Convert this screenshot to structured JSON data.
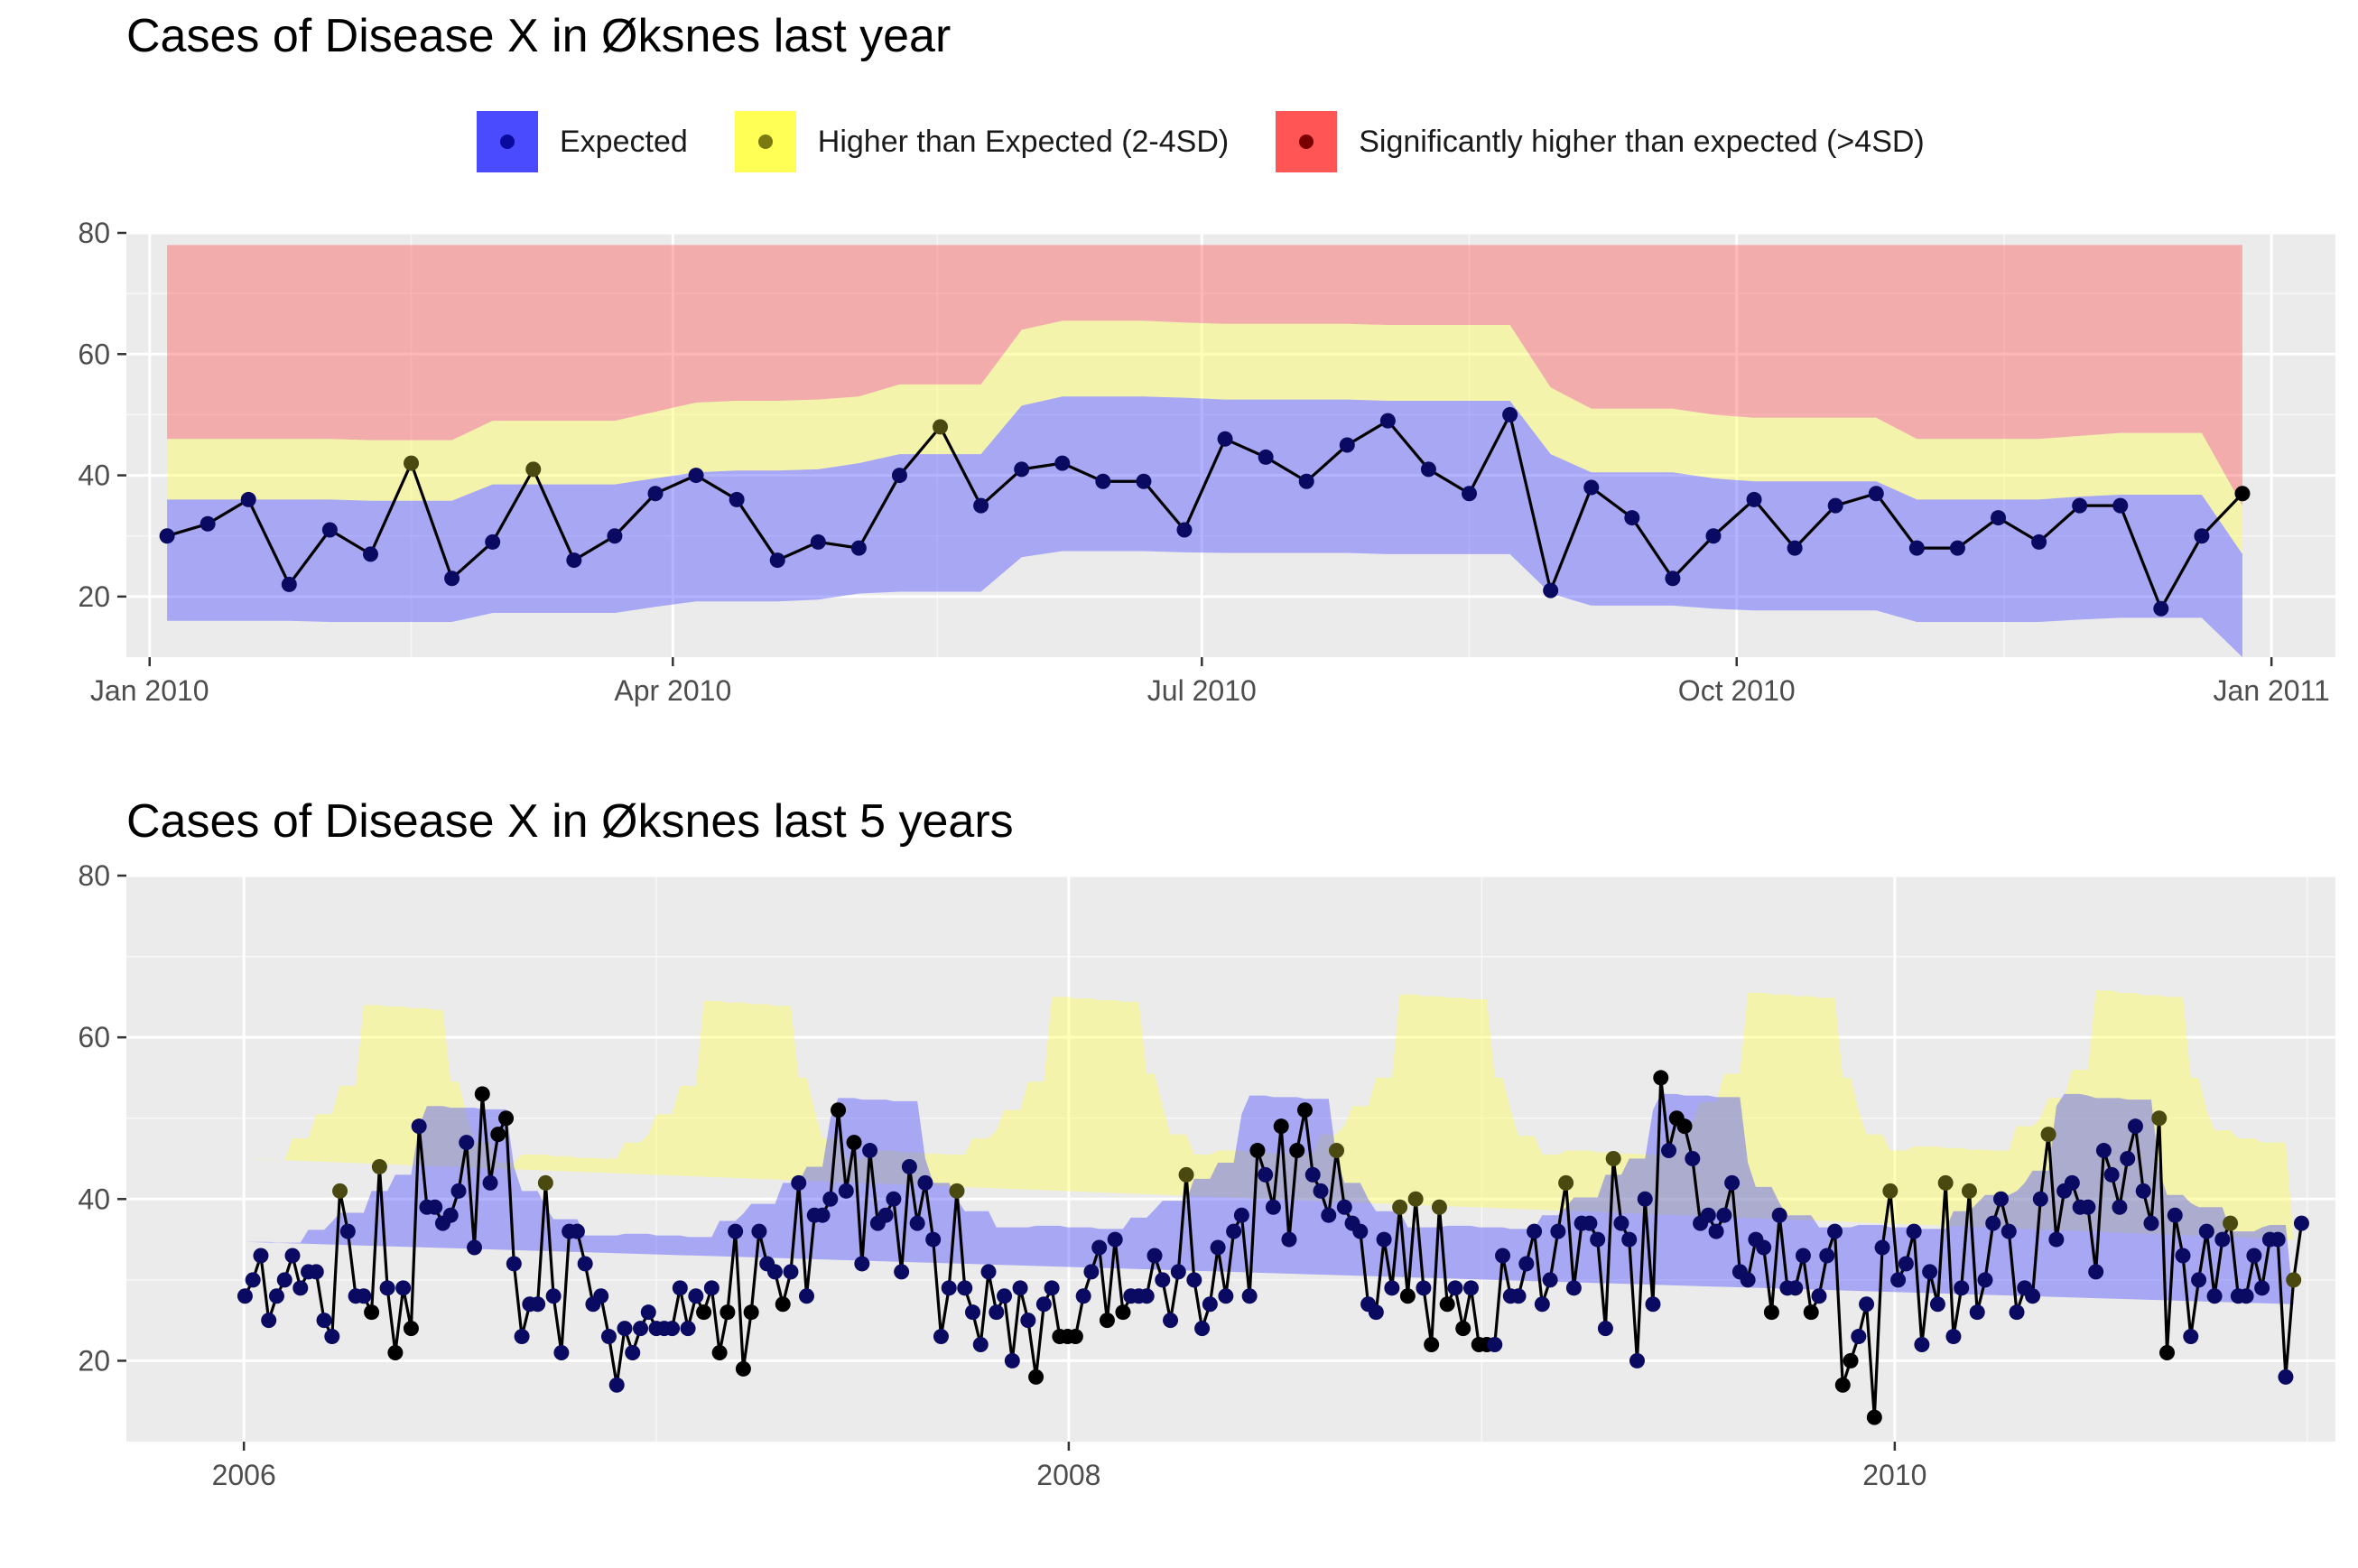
{
  "chart_data": [
    {
      "type": "area+line",
      "title": "Cases of Disease X in Øksnes last year",
      "xlabel": "",
      "ylabel": "",
      "x_ticks": [
        "Jan 2010",
        "Apr 2010",
        "Jul 2010",
        "Oct 2010",
        "Jan 2011"
      ],
      "y_ticks": [
        20,
        40,
        60,
        80
      ],
      "xlim": [
        "2009-12-28",
        "2011-01-12"
      ],
      "ylim": [
        10,
        80
      ],
      "grid": true,
      "legend_position": "top",
      "legend": [
        {
          "label": "Expected",
          "band_color": "#4a4aff",
          "point_color": "#0a0a9e"
        },
        {
          "label": "Higher than Expected (2-4SD)",
          "band_color": "#ffff55",
          "point_color": "#7a7a10"
        },
        {
          "label": "Significantly higher than expected (>4SD)",
          "band_color": "#ff5555",
          "point_color": "#7a0000"
        }
      ],
      "band_top": 78,
      "weeks_start": "2010-01-04",
      "week_step_days": 7,
      "cases": [
        30,
        32,
        36,
        22,
        31,
        27,
        42,
        23,
        29,
        41,
        26,
        30,
        37,
        40,
        36,
        26,
        29,
        28,
        40,
        48,
        35,
        41,
        42,
        39,
        39,
        31,
        46,
        43,
        39,
        45,
        49,
        41,
        37,
        50,
        21,
        38,
        33,
        23,
        30,
        36,
        28,
        35,
        37,
        28,
        28,
        33,
        29,
        35,
        35,
        18,
        30,
        37
      ],
      "upper_2sd": [
        36,
        36,
        36,
        36,
        36,
        35.8,
        35.8,
        35.8,
        38.5,
        38.5,
        38.5,
        38.5,
        39.5,
        40.5,
        40.8,
        40.8,
        41,
        42,
        43.5,
        43.5,
        43.5,
        51.5,
        53,
        53,
        53,
        52.8,
        52.5,
        52.5,
        52.5,
        52.5,
        52.3,
        52.3,
        52.3,
        52.3,
        43.5,
        40.5,
        40.5,
        40.5,
        39.5,
        39,
        39,
        39,
        39,
        36,
        36,
        36,
        36,
        36.5,
        36.8,
        36.8,
        36.8,
        27
      ],
      "upper_4sd": [
        46,
        46,
        46,
        46,
        46,
        45.8,
        45.8,
        45.8,
        49,
        49,
        49,
        49,
        50.5,
        52,
        52.3,
        52.3,
        52.5,
        53,
        55,
        55,
        55,
        64,
        65.5,
        65.5,
        65.5,
        65.2,
        65,
        65,
        65,
        65,
        64.8,
        64.8,
        64.8,
        64.8,
        54.5,
        51,
        51,
        51,
        50,
        49.5,
        49.5,
        49.5,
        49.5,
        46,
        46,
        46,
        46,
        46.5,
        47,
        47,
        47,
        35
      ],
      "lower": [
        16,
        16,
        16,
        16,
        15.8,
        15.8,
        15.8,
        15.8,
        17.3,
        17.3,
        17.3,
        17.3,
        18.3,
        19.2,
        19.2,
        19.2,
        19.5,
        20.5,
        20.8,
        20.8,
        20.8,
        26.5,
        27.5,
        27.5,
        27.5,
        27.3,
        27.2,
        27.2,
        27.2,
        27.2,
        27,
        27,
        27,
        27,
        20.5,
        18.5,
        18.5,
        18.5,
        18,
        17.7,
        17.7,
        17.7,
        17.7,
        15.8,
        15.8,
        15.8,
        15.8,
        16.2,
        16.5,
        16.5,
        16.5,
        10
      ]
    },
    {
      "type": "area+line",
      "title": "Cases of Disease X in Øksnes last 5 years",
      "xlabel": "",
      "ylabel": "",
      "x_ticks": [
        "2006",
        "2008",
        "2010"
      ],
      "y_ticks": [
        20,
        40,
        60,
        80
      ],
      "xlim": [
        "2005-09-19",
        "2011-01-26"
      ],
      "ylim": [
        10,
        80
      ],
      "grid": true,
      "band_top": 78,
      "weeks_start": "2006-01-02",
      "week_step_days": 7,
      "cases": [
        28,
        30,
        33,
        25,
        28,
        30,
        33,
        29,
        31,
        31,
        25,
        23,
        41,
        36,
        28,
        28,
        26,
        44,
        29,
        21,
        29,
        24,
        49,
        39,
        39,
        37,
        38,
        41,
        47,
        34,
        53,
        42,
        48,
        50,
        32,
        23,
        27,
        27,
        42,
        28,
        21,
        36,
        36,
        32,
        27,
        28,
        23,
        17,
        24,
        21,
        24,
        26,
        24,
        24,
        24,
        29,
        24,
        28,
        26,
        29,
        21,
        26,
        36,
        19,
        26,
        36,
        32,
        31,
        27,
        31,
        42,
        28,
        38,
        38,
        40,
        51,
        41,
        47,
        32,
        46,
        37,
        38,
        40,
        31,
        44,
        37,
        42,
        35,
        23,
        29,
        41,
        29,
        26,
        22,
        31,
        26,
        28,
        20,
        29,
        25,
        18,
        27,
        29,
        23,
        23,
        23,
        28,
        31,
        34,
        25,
        35,
        26,
        28,
        28,
        28,
        33,
        30,
        25,
        31,
        43,
        30,
        24,
        27,
        34,
        28,
        36,
        38,
        28,
        46,
        43,
        39,
        49,
        35,
        46,
        51,
        43,
        41,
        38,
        46,
        39,
        37,
        36,
        27,
        26,
        35,
        29,
        39,
        28,
        40,
        29,
        22,
        39,
        27,
        29,
        24,
        29,
        22,
        22,
        22,
        33,
        28,
        28,
        32,
        36,
        27,
        30,
        36,
        42,
        29,
        37,
        37,
        35,
        24,
        45,
        37,
        35,
        20,
        40,
        27,
        55,
        46,
        50,
        49,
        45,
        37,
        38,
        36,
        38,
        42,
        31,
        30,
        35,
        34,
        26,
        38,
        29,
        29,
        33,
        26,
        28,
        33,
        36,
        17,
        20,
        23,
        27,
        13,
        34,
        41,
        30,
        32,
        36,
        22,
        31,
        27,
        42,
        23,
        29,
        41,
        26,
        30,
        37,
        40,
        36,
        26,
        29,
        28,
        40,
        48,
        35,
        41,
        42,
        39,
        39,
        31,
        46,
        43,
        39,
        45,
        49,
        41,
        37,
        50,
        21,
        38,
        33,
        23,
        30,
        36,
        28,
        35,
        37,
        28,
        28,
        33,
        29,
        35,
        35,
        18,
        30,
        37
      ],
      "upper_2sd": [
        34.7,
        34.7,
        34.7,
        34.7,
        34.6,
        34.6,
        34.6,
        34.6,
        36.2,
        36.2,
        36.2,
        37.2,
        38.3,
        38.3,
        38.3,
        38.3,
        41,
        41,
        41,
        43,
        43,
        43,
        49,
        51.5,
        51.5,
        51.5,
        51.3,
        51.3,
        51.3,
        51.3,
        51.1,
        51.1,
        51.1,
        51.1,
        44,
        41,
        41,
        41,
        39,
        37.5,
        37.5,
        37.5,
        37.5,
        35.5,
        35.5,
        35.5,
        35.5,
        35.5,
        35.7,
        35.7,
        35.7,
        35.7,
        35.5,
        35.5,
        35.5,
        35.5,
        35.3,
        35.3,
        35.3,
        35.3,
        37.3,
        37.3,
        37.3,
        38.2,
        39.4,
        39.4,
        39.4,
        39.4,
        42,
        42,
        42,
        44,
        44,
        44,
        50,
        52.5,
        52.5,
        52.5,
        52.3,
        52.3,
        52.3,
        52.3,
        52.1,
        52.1,
        52.1,
        52.1,
        45,
        42,
        42,
        42,
        40,
        38.5,
        38.5,
        38.5,
        38.5,
        36.5,
        36.5,
        36.5,
        36.5,
        36.5,
        36.7,
        36.7,
        36.7,
        36.7,
        36.5,
        36.5,
        36.5,
        36.5,
        36.3,
        36.3,
        36.3,
        36.3,
        37.7,
        37.7,
        37.7,
        38.7,
        39.8,
        39.8,
        39.8,
        39.8,
        42.5,
        42.5,
        42.5,
        44.5,
        44.5,
        44.5,
        50.5,
        52.8,
        52.8,
        52.8,
        52.6,
        52.6,
        52.6,
        52.6,
        52.4,
        52.4,
        52.4,
        52.4,
        45,
        42,
        42,
        42,
        40,
        38.5,
        38.5,
        38.5,
        38.5,
        36.5,
        36.5,
        36.5,
        36.5,
        36.5,
        36.7,
        36.7,
        36.7,
        36.7,
        36.5,
        36.5,
        36.5,
        36.5,
        36.3,
        36.3,
        36.3,
        36.3,
        38,
        38,
        38,
        39,
        40.2,
        40.2,
        40.2,
        40.2,
        43,
        43,
        43,
        45,
        45,
        45,
        51,
        53,
        53,
        53,
        52.8,
        52.8,
        52.8,
        52.8,
        52.6,
        52.6,
        52.6,
        52.6,
        44.5,
        41.5,
        41.5,
        41.5,
        39.5,
        38,
        38,
        38,
        38,
        36.5,
        36.5,
        36.5,
        36.5,
        36.5,
        36.8,
        36.8,
        36.8,
        36.8,
        36.5,
        36.5,
        36.5,
        36.5,
        36.3,
        36.3,
        36.3,
        36.3,
        38.5,
        38.5,
        38.5,
        39.5,
        40.5,
        40.5,
        40.5,
        40.5,
        41,
        42,
        43.5,
        43.5,
        43.5,
        51.5,
        53,
        53,
        53,
        52.8,
        52.5,
        52.5,
        52.5,
        52.5,
        52.3,
        52.3,
        52.3,
        52.3,
        43.5,
        40.5,
        40.5,
        40.5,
        39.5,
        39,
        39,
        39,
        39,
        36,
        36,
        36,
        36,
        36.5,
        36.8,
        36.8,
        36.8,
        27
      ],
      "upper_4sd": [
        45,
        45,
        45,
        44.8,
        44.8,
        44.8,
        47.5,
        47.5,
        47.5,
        50.5,
        50.5,
        50.5,
        54,
        54,
        54,
        64,
        64,
        64,
        63.8,
        63.8,
        63.8,
        63.6,
        63.6,
        63.6,
        63.4,
        63.4,
        54.5,
        54.5,
        50.5,
        47,
        47,
        47,
        44.5,
        44.5,
        44.5,
        45.5,
        45.5,
        45.5,
        45.5,
        45.3,
        45.3,
        45.3,
        45.1,
        45.1,
        45.1,
        45,
        45,
        45,
        47,
        47,
        47,
        48,
        50.5,
        50.5,
        50.5,
        54,
        54,
        54,
        64.5,
        64.5,
        64.5,
        64.3,
        64.3,
        64.3,
        64.1,
        64.1,
        64.1,
        63.9,
        63.9,
        63.9,
        55,
        55,
        51,
        47.5,
        47.5,
        47.5,
        45,
        45,
        45,
        46,
        46,
        46,
        46,
        45.8,
        45.8,
        45.8,
        45.6,
        45.6,
        45.6,
        45.5,
        45.5,
        45.5,
        47.5,
        47.5,
        47.5,
        48.5,
        51,
        51,
        51,
        54.5,
        54.5,
        54.5,
        65,
        65,
        65,
        64.8,
        64.8,
        64.8,
        64.6,
        64.6,
        64.6,
        64.4,
        64.4,
        64.4,
        55.5,
        55.5,
        51.5,
        48,
        48,
        48,
        45.5,
        45.5,
        45.5,
        46,
        46,
        46,
        46,
        45.8,
        45.8,
        45.8,
        45.6,
        45.6,
        45.6,
        45.5,
        45.5,
        45.5,
        48,
        48,
        48,
        49,
        51.5,
        51.5,
        51.5,
        55,
        55,
        55,
        65.3,
        65.3,
        65.3,
        65.1,
        65.1,
        65.1,
        64.9,
        64.9,
        64.9,
        64.7,
        64.7,
        64.7,
        55,
        55,
        51,
        47.8,
        47.8,
        47.8,
        45.5,
        45.5,
        45.5,
        46,
        46,
        46,
        46,
        45.8,
        45.8,
        45.8,
        45.6,
        45.6,
        45.6,
        45.5,
        45.5,
        45.5,
        48.5,
        48.5,
        48.5,
        49.5,
        52,
        52,
        52,
        55.5,
        55.5,
        55.5,
        65.5,
        65.5,
        65.5,
        65.3,
        65.3,
        65.3,
        65.1,
        65.1,
        65.1,
        64.9,
        64.9,
        64.9,
        55,
        55,
        51,
        48,
        48,
        48,
        46,
        46,
        46,
        46.5,
        46.5,
        46.5,
        46.5,
        46.3,
        46.3,
        46.3,
        46.1,
        46.1,
        46.1,
        46,
        46,
        46,
        49,
        49,
        49,
        50,
        52.5,
        52.5,
        52.5,
        56,
        56,
        56,
        65.8,
        65.8,
        65.8,
        65.5,
        65.5,
        65.5,
        65.2,
        65.2,
        65.2,
        65,
        65,
        65,
        55,
        55,
        51,
        48.5,
        48.5,
        48.5,
        47.5,
        47.5,
        47.5,
        47,
        47,
        47,
        47,
        35
      ],
      "lower": [
        15,
        15,
        15,
        14.8,
        14.8,
        14.8,
        16.7,
        16.7,
        16.7,
        18.2,
        18.2,
        18.2,
        20.5,
        20.5,
        20.5,
        27.5,
        27.5,
        27.5,
        27.3,
        27.3,
        27.3,
        27.1,
        27.1,
        27.1,
        26.9,
        26.9,
        21,
        21,
        17.5,
        16.5,
        16.5,
        16.5,
        15,
        15,
        15,
        16,
        16,
        16,
        16,
        15.8,
        15.8,
        15.8,
        15.6,
        15.6,
        15.6,
        15.3,
        15.3,
        15.3,
        16.8,
        16.8,
        16.8,
        17.5,
        18.5,
        18.5,
        18.5,
        20.5,
        20.5,
        20.5,
        27.7,
        27.7,
        27.7,
        27.5,
        27.5,
        27.5,
        27.3,
        27.3,
        27.3,
        27.1,
        27.1,
        27.1,
        21.5,
        21.5,
        18,
        16.8,
        16.8,
        16.8,
        15.3,
        15.3,
        15.3,
        16.5,
        16.5,
        16.5,
        16.5,
        16.3,
        16.3,
        16.3,
        16.1,
        16.1,
        16.1,
        15.8,
        15.8,
        15.8,
        17,
        17,
        17,
        17.7,
        18.7,
        18.7,
        18.7,
        20.8,
        20.8,
        20.8,
        28,
        28,
        28,
        27.8,
        27.8,
        27.8,
        27.6,
        27.6,
        27.6,
        27.4,
        27.4,
        27.4,
        21.8,
        21.8,
        18.2,
        17,
        17,
        17,
        15.5,
        15.5,
        15.5,
        16.5,
        16.5,
        16.5,
        16.5,
        16.3,
        16.3,
        16.3,
        16.1,
        16.1,
        16.1,
        15.8,
        15.8,
        15.8,
        17.2,
        17.2,
        17.2,
        18,
        19,
        19,
        19,
        21,
        21,
        21,
        28.2,
        28.2,
        28.2,
        28,
        28,
        28,
        27.8,
        27.8,
        27.8,
        27.6,
        27.6,
        27.6,
        21.5,
        21.5,
        18,
        16.9,
        16.9,
        16.9,
        15.5,
        15.5,
        15.5,
        16.3,
        16.3,
        16.3,
        16.3,
        16.1,
        16.1,
        16.1,
        15.9,
        15.9,
        15.9,
        15.7,
        15.7,
        15.7,
        17.5,
        17.5,
        17.5,
        18.3,
        19.3,
        19.3,
        19.3,
        21.3,
        21.3,
        21.3,
        28.4,
        28.4,
        28.4,
        28.2,
        28.2,
        28.2,
        28,
        28,
        28,
        27.8,
        27.8,
        27.8,
        21.5,
        21.5,
        18,
        17,
        17,
        17,
        15.8,
        15.8,
        15.8,
        16.3,
        16.3,
        16.3,
        16.3,
        16.1,
        16.1,
        16.1,
        15.9,
        15.9,
        15.9,
        15.7,
        15.7,
        15.7,
        17.3,
        17.3,
        17.3,
        18.3,
        19.3,
        19.3,
        19.3,
        21.5,
        21.5,
        21.5,
        28.2,
        28.2,
        28.2,
        28,
        28,
        28,
        27.8,
        27.8,
        27.8,
        27.6,
        27.6,
        27.6,
        21.5,
        21.5,
        18,
        17,
        17,
        17,
        16,
        16,
        16,
        16.3,
        16.3,
        16.3,
        16.3,
        10
      ]
    }
  ]
}
